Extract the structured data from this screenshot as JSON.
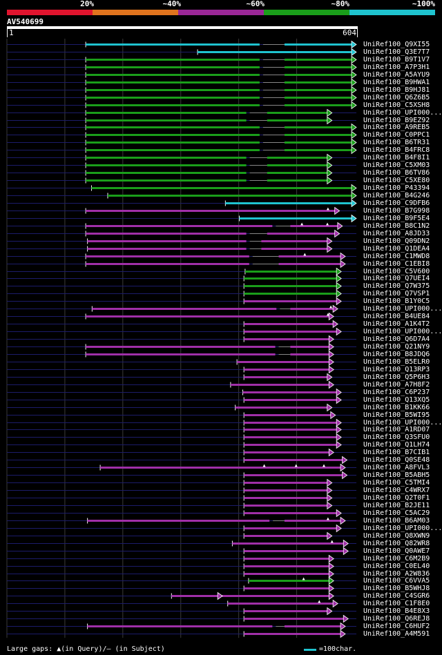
{
  "legend": [
    {
      "label": "20%",
      "color": "#e0142e"
    },
    {
      "label": "~40%",
      "color": "#e0741e"
    },
    {
      "label": "~60%",
      "color": "#9a2796"
    },
    {
      "label": "~80%",
      "color": "#1a9e1a"
    },
    {
      "label": "~100%",
      "color": "#1fc3cf"
    }
  ],
  "query": {
    "title": "AV540699",
    "start": "1",
    "end": "604"
  },
  "colors": {
    "cyan": "#1fc3cf",
    "green": "#1a9e1a",
    "purple": "#a02fa8",
    "guide": "#1c1c6a",
    "grid": "#3a3a3a"
  },
  "query_length": 604,
  "hits": [
    {
      "name": "UniRef100_Q9XI55",
      "color": "cyan",
      "start": 137,
      "end": 604,
      "gaps": [
        [
          443,
          480
        ]
      ],
      "qmarks": []
    },
    {
      "name": "UniRef100_Q3E7T7",
      "color": "cyan",
      "start": 330,
      "end": 604,
      "gaps": [],
      "qmarks": []
    },
    {
      "name": "UniRef100_B9T1V7",
      "color": "green",
      "start": 137,
      "end": 604,
      "gaps": [
        [
          443,
          480
        ]
      ],
      "qmarks": []
    },
    {
      "name": "UniRef100_A7P3H1",
      "color": "green",
      "start": 137,
      "end": 604,
      "gaps": [
        [
          443,
          480
        ]
      ],
      "qmarks": []
    },
    {
      "name": "UniRef100_A5AYU9",
      "color": "green",
      "start": 137,
      "end": 604,
      "gaps": [
        [
          443,
          480
        ]
      ],
      "qmarks": []
    },
    {
      "name": "UniRef100_B9HWA1",
      "color": "green",
      "start": 137,
      "end": 604,
      "gaps": [
        [
          443,
          480
        ]
      ],
      "qmarks": []
    },
    {
      "name": "UniRef100_B9HJ81",
      "color": "green",
      "start": 137,
      "end": 604,
      "gaps": [
        [
          443,
          480
        ]
      ],
      "qmarks": []
    },
    {
      "name": "UniRef100_Q6Z6B5",
      "color": "green",
      "start": 137,
      "end": 604,
      "gaps": [
        [
          443,
          480
        ]
      ],
      "qmarks": []
    },
    {
      "name": "UniRef100_C5XSH8",
      "color": "green",
      "start": 137,
      "end": 604,
      "gaps": [
        [
          443,
          480
        ]
      ],
      "qmarks": []
    },
    {
      "name": "UniRef100_UPI000...",
      "color": "green",
      "start": 137,
      "end": 562,
      "gaps": [
        [
          420,
          450
        ]
      ],
      "qmarks": []
    },
    {
      "name": "UniRef100_B9EZ92",
      "color": "green",
      "start": 137,
      "end": 562,
      "gaps": [
        [
          420,
          450
        ]
      ],
      "qmarks": []
    },
    {
      "name": "UniRef100_A9REB5",
      "color": "green",
      "start": 137,
      "end": 604,
      "gaps": [
        [
          443,
          480
        ]
      ],
      "qmarks": []
    },
    {
      "name": "UniRef100_C0PPC1",
      "color": "green",
      "start": 137,
      "end": 604,
      "gaps": [
        [
          443,
          480
        ]
      ],
      "qmarks": []
    },
    {
      "name": "UniRef100_B6TR31",
      "color": "green",
      "start": 137,
      "end": 604,
      "gaps": [
        [
          443,
          480
        ]
      ],
      "qmarks": []
    },
    {
      "name": "UniRef100_B4FRC8",
      "color": "green",
      "start": 137,
      "end": 604,
      "gaps": [
        [
          443,
          480
        ]
      ],
      "qmarks": []
    },
    {
      "name": "UniRef100_B4F8I1",
      "color": "green",
      "start": 137,
      "end": 562,
      "gaps": [
        [
          420,
          450
        ]
      ],
      "qmarks": []
    },
    {
      "name": "UniRef100_C5XM03",
      "color": "green",
      "start": 137,
      "end": 562,
      "gaps": [
        [
          420,
          450
        ]
      ],
      "qmarks": []
    },
    {
      "name": "UniRef100_B6TV86",
      "color": "green",
      "start": 137,
      "end": 562,
      "gaps": [
        [
          420,
          450
        ]
      ],
      "qmarks": []
    },
    {
      "name": "UniRef100_C5XE80",
      "color": "green",
      "start": 137,
      "end": 562,
      "gaps": [
        [
          420,
          450
        ]
      ],
      "qmarks": []
    },
    {
      "name": "UniRef100_P43394",
      "color": "green",
      "start": 147,
      "end": 604,
      "gaps": [],
      "qmarks": []
    },
    {
      "name": "UniRef100_B4G246",
      "color": "green",
      "start": 175,
      "end": 604,
      "gaps": [],
      "qmarks": []
    },
    {
      "name": "UniRef100_C9DFB6",
      "color": "cyan",
      "start": 378,
      "end": 604,
      "gaps": [],
      "qmarks": []
    },
    {
      "name": "UniRef100_B7G998",
      "color": "purple",
      "start": 137,
      "end": 575,
      "gaps": [],
      "qmarks": [
        555
      ]
    },
    {
      "name": "UniRef100_B9F5E4",
      "color": "cyan",
      "start": 402,
      "end": 604,
      "gaps": [],
      "qmarks": []
    },
    {
      "name": "UniRef100_B8C1N2",
      "color": "purple",
      "start": 137,
      "end": 580,
      "gaps": [
        [
          465,
          490
        ]
      ],
      "qmarks": [
        510,
        554
      ]
    },
    {
      "name": "UniRef100_A8JD33",
      "color": "purple",
      "start": 137,
      "end": 575,
      "gaps": [
        [
          420,
          450
        ]
      ],
      "qmarks": []
    },
    {
      "name": "UniRef100_Q09DN2",
      "color": "purple",
      "start": 140,
      "end": 562,
      "gaps": [
        [
          420,
          440
        ]
      ],
      "qmarks": []
    },
    {
      "name": "UniRef100_Q1DEA4",
      "color": "purple",
      "start": 140,
      "end": 562,
      "gaps": [
        [
          420,
          440
        ]
      ],
      "qmarks": []
    },
    {
      "name": "UniRef100_C1MWD8",
      "color": "purple",
      "start": 137,
      "end": 585,
      "gaps": [
        [
          425,
          470
        ]
      ],
      "qmarks": [
        515
      ]
    },
    {
      "name": "UniRef100_C1EBI8",
      "color": "purple",
      "start": 137,
      "end": 585,
      "gaps": [
        [
          425,
          470
        ]
      ],
      "qmarks": []
    },
    {
      "name": "UniRef100_C5V600",
      "color": "green",
      "start": 412,
      "end": 578,
      "gaps": [],
      "qmarks": []
    },
    {
      "name": "UniRef100_Q7UEI4",
      "color": "green",
      "start": 410,
      "end": 578,
      "gaps": [],
      "qmarks": []
    },
    {
      "name": "UniRef100_Q7W375",
      "color": "green",
      "start": 410,
      "end": 578,
      "gaps": [],
      "qmarks": []
    },
    {
      "name": "UniRef100_Q7VSP1",
      "color": "green",
      "start": 410,
      "end": 578,
      "gaps": [],
      "qmarks": []
    },
    {
      "name": "UniRef100_B1Y0C5",
      "color": "purple",
      "start": 410,
      "end": 578,
      "gaps": [],
      "qmarks": []
    },
    {
      "name": "UniRef100_UPI000...",
      "color": "purple",
      "start": 148,
      "end": 572,
      "gaps": [
        [
          472,
          490
        ]
      ],
      "qmarks": [
        560
      ]
    },
    {
      "name": "UniRef100_B4UE84",
      "color": "purple",
      "start": 137,
      "end": 565,
      "gaps": [],
      "qmarks": [
        555
      ]
    },
    {
      "name": "UniRef100_A1K4T2",
      "color": "purple",
      "start": 410,
      "end": 572,
      "gaps": [],
      "qmarks": []
    },
    {
      "name": "UniRef100_UPI000...",
      "color": "purple",
      "start": 410,
      "end": 578,
      "gaps": [],
      "qmarks": []
    },
    {
      "name": "UniRef100_Q6D7A4",
      "color": "purple",
      "start": 410,
      "end": 565,
      "gaps": [],
      "qmarks": []
    },
    {
      "name": "UniRef100_Q21NY9",
      "color": "purple",
      "start": 137,
      "end": 565,
      "gaps": [
        [
          470,
          490
        ]
      ],
      "qmarks": []
    },
    {
      "name": "UniRef100_B8JDQ6",
      "color": "purple",
      "start": 137,
      "end": 565,
      "gaps": [
        [
          470,
          490
        ]
      ],
      "qmarks": []
    },
    {
      "name": "UniRef100_B5ELR0",
      "color": "purple",
      "start": 398,
      "end": 565,
      "gaps": [],
      "qmarks": []
    },
    {
      "name": "UniRef100_Q13RP3",
      "color": "purple",
      "start": 410,
      "end": 565,
      "gaps": [],
      "qmarks": []
    },
    {
      "name": "UniRef100_Q5P6H3",
      "color": "purple",
      "start": 410,
      "end": 562,
      "gaps": [],
      "qmarks": []
    },
    {
      "name": "UniRef100_A7H8F2",
      "color": "purple",
      "start": 387,
      "end": 565,
      "gaps": [],
      "qmarks": []
    },
    {
      "name": "UniRef100_C6P237",
      "color": "purple",
      "start": 408,
      "end": 578,
      "gaps": [],
      "qmarks": []
    },
    {
      "name": "UniRef100_Q13XQ5",
      "color": "purple",
      "start": 410,
      "end": 578,
      "gaps": [],
      "qmarks": []
    },
    {
      "name": "UniRef100_B1KK66",
      "color": "purple",
      "start": 395,
      "end": 562,
      "gaps": [],
      "qmarks": []
    },
    {
      "name": "UniRef100_B5WI95",
      "color": "purple",
      "start": 410,
      "end": 568,
      "gaps": [],
      "qmarks": []
    },
    {
      "name": "UniRef100_UPI000...",
      "color": "purple",
      "start": 410,
      "end": 578,
      "gaps": [],
      "qmarks": []
    },
    {
      "name": "UniRef100_A1RD07",
      "color": "purple",
      "start": 410,
      "end": 578,
      "gaps": [],
      "qmarks": []
    },
    {
      "name": "UniRef100_Q3SFU0",
      "color": "purple",
      "start": 410,
      "end": 578,
      "gaps": [],
      "qmarks": []
    },
    {
      "name": "UniRef100_Q1LH74",
      "color": "purple",
      "start": 410,
      "end": 578,
      "gaps": [],
      "qmarks": []
    },
    {
      "name": "UniRef100_B7CIB1",
      "color": "purple",
      "start": 410,
      "end": 565,
      "gaps": [],
      "qmarks": []
    },
    {
      "name": "UniRef100_Q0SE48",
      "color": "purple",
      "start": 410,
      "end": 588,
      "gaps": [],
      "qmarks": []
    },
    {
      "name": "UniRef100_A8FVL3",
      "color": "purple",
      "start": 162,
      "end": 585,
      "gaps": [],
      "qmarks": [
        548,
        500,
        445
      ]
    },
    {
      "name": "UniRef100_B5ABH5",
      "color": "purple",
      "start": 410,
      "end": 588,
      "gaps": [],
      "qmarks": []
    },
    {
      "name": "UniRef100_C5TMI4",
      "color": "purple",
      "start": 410,
      "end": 562,
      "gaps": [],
      "qmarks": []
    },
    {
      "name": "UniRef100_C4WRX7",
      "color": "purple",
      "start": 410,
      "end": 562,
      "gaps": [],
      "qmarks": []
    },
    {
      "name": "UniRef100_Q2T0F1",
      "color": "purple",
      "start": 410,
      "end": 562,
      "gaps": [],
      "qmarks": []
    },
    {
      "name": "UniRef100_B2JE11",
      "color": "purple",
      "start": 410,
      "end": 562,
      "gaps": [],
      "qmarks": []
    },
    {
      "name": "UniRef100_C5AC29",
      "color": "purple",
      "start": 410,
      "end": 578,
      "gaps": [],
      "qmarks": []
    },
    {
      "name": "UniRef100_B6AM03",
      "color": "purple",
      "start": 140,
      "end": 585,
      "gaps": [
        [
          460,
          480
        ]
      ],
      "qmarks": [
        555
      ]
    },
    {
      "name": "UniRef100_UPI000...",
      "color": "purple",
      "start": 410,
      "end": 578,
      "gaps": [],
      "qmarks": []
    },
    {
      "name": "UniRef100_Q8XWN9",
      "color": "purple",
      "start": 410,
      "end": 562,
      "gaps": [],
      "qmarks": []
    },
    {
      "name": "UniRef100_Q82WR8",
      "color": "purple",
      "start": 390,
      "end": 590,
      "gaps": [],
      "qmarks": [
        562
      ]
    },
    {
      "name": "UniRef100_Q0AWE7",
      "color": "purple",
      "start": 410,
      "end": 590,
      "gaps": [],
      "qmarks": []
    },
    {
      "name": "UniRef100_C6M2B9",
      "color": "purple",
      "start": 410,
      "end": 565,
      "gaps": [],
      "qmarks": []
    },
    {
      "name": "UniRef100_C0EL40",
      "color": "purple",
      "start": 410,
      "end": 565,
      "gaps": [],
      "qmarks": []
    },
    {
      "name": "UniRef100_A2W836",
      "color": "purple",
      "start": 410,
      "end": 565,
      "gaps": [],
      "qmarks": []
    },
    {
      "name": "UniRef100_C6VVA5",
      "color": "green",
      "start": 418,
      "end": 565,
      "gaps": [],
      "qmarks": [
        513
      ]
    },
    {
      "name": "UniRef100_B5WHJ8",
      "color": "purple",
      "start": 410,
      "end": 565,
      "gaps": [],
      "qmarks": []
    },
    {
      "name": "UniRef100_C4SGR6",
      "color": "purple",
      "start": 285,
      "end": 565,
      "gaps": [],
      "qmarks": [],
      "mid_arrow": 373
    },
    {
      "name": "UniRef100_C1F8E0",
      "color": "purple",
      "start": 382,
      "end": 572,
      "gaps": [],
      "qmarks": [
        540
      ]
    },
    {
      "name": "UniRef100_B4E8X3",
      "color": "purple",
      "start": 410,
      "end": 562,
      "gaps": [],
      "qmarks": []
    },
    {
      "name": "UniRef100_Q6REJ8",
      "color": "purple",
      "start": 410,
      "end": 590,
      "gaps": [],
      "qmarks": []
    },
    {
      "name": "UniRef100_C6HUF2",
      "color": "purple",
      "start": 140,
      "end": 585,
      "gaps": [
        [
          465,
          480
        ]
      ],
      "qmarks": []
    },
    {
      "name": "UniRef100_A4M591",
      "color": "purple",
      "start": 410,
      "end": 585,
      "gaps": [],
      "qmarks": []
    }
  ],
  "footer": {
    "text": "Large gaps: ▲(in Query)/– (in Subject)",
    "scale_label": "=100char."
  }
}
